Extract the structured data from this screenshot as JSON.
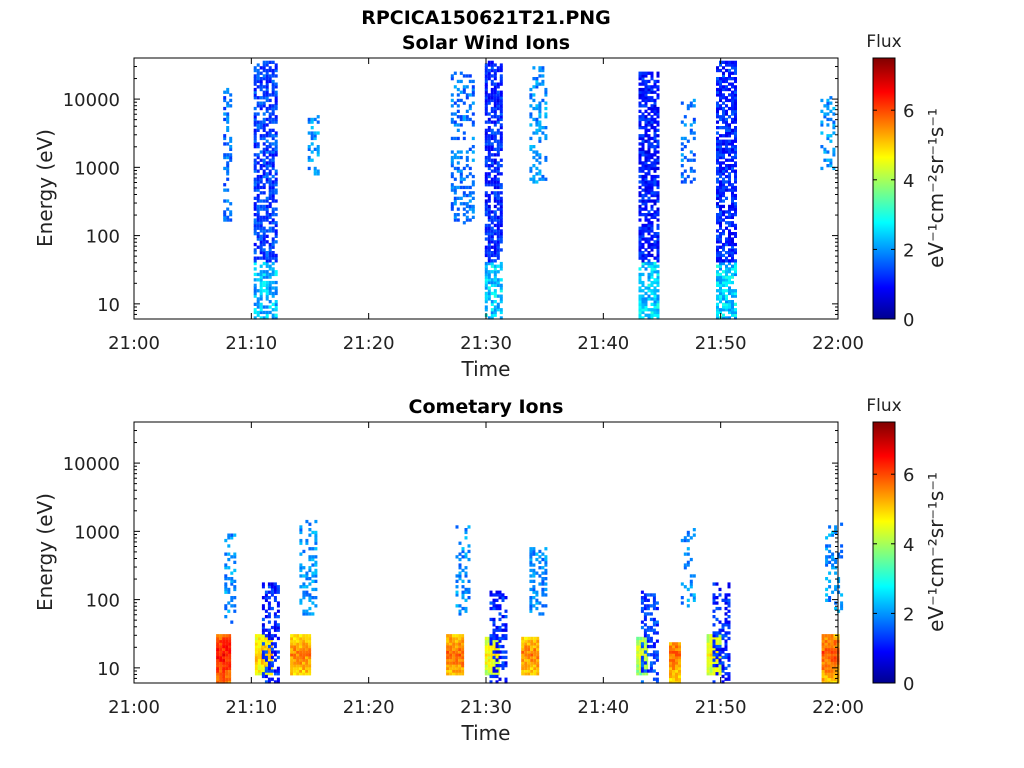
{
  "figure": {
    "file_title": "RPCICA150621T21.PNG"
  },
  "chart_data": [
    {
      "type": "heatmap",
      "title": "Solar Wind Ions",
      "xlabel": "Time",
      "ylabel": "Energy (eV)",
      "x_ticks": [
        "21:00",
        "21:10",
        "21:20",
        "21:30",
        "21:40",
        "21:50",
        "22:00"
      ],
      "xlim": [
        "21:00",
        "22:00"
      ],
      "y_ticks": [
        "10",
        "100",
        "1000",
        "10000"
      ],
      "y_tick_values": [
        10,
        100,
        1000,
        10000
      ],
      "ylim": [
        6,
        40000
      ],
      "y_scale": "log",
      "colorbar": {
        "title": "Flux",
        "label": "eV⁻¹cm⁻²sr⁻¹s⁻¹",
        "ticks": [
          "0",
          "2",
          "4",
          "6"
        ],
        "tick_values": [
          0,
          2,
          4,
          6
        ],
        "range": [
          0,
          7.5
        ],
        "colormap": "jet"
      },
      "bursts": [
        {
          "t": 7.6,
          "w": 0.6,
          "emin": 150,
          "emax": 15000,
          "v": 1.7,
          "d": 0.4
        },
        {
          "t": 10.2,
          "w": 1.8,
          "emin": 6,
          "emax": 38000,
          "v": 1.4,
          "low_v": 2.3,
          "d": 0.6
        },
        {
          "t": 14.8,
          "w": 1.0,
          "emin": 800,
          "emax": 6000,
          "v": 2.0,
          "d": 0.35
        },
        {
          "t": 27.0,
          "w": 1.8,
          "emin": 150,
          "emax": 25000,
          "v": 1.8,
          "d": 0.35
        },
        {
          "t": 29.9,
          "w": 1.4,
          "emin": 6,
          "emax": 35000,
          "v": 1.2,
          "low_v": 2.5,
          "d": 0.7
        },
        {
          "t": 33.7,
          "w": 1.3,
          "emin": 600,
          "emax": 30000,
          "v": 2.0,
          "d": 0.35
        },
        {
          "t": 43.0,
          "w": 1.6,
          "emin": 6,
          "emax": 25000,
          "v": 1.1,
          "low_v": 2.5,
          "d": 0.7
        },
        {
          "t": 46.6,
          "w": 1.2,
          "emin": 600,
          "emax": 12000,
          "v": 1.8,
          "d": 0.3
        },
        {
          "t": 49.6,
          "w": 1.6,
          "emin": 6,
          "emax": 35000,
          "v": 1.2,
          "low_v": 2.5,
          "d": 0.7
        },
        {
          "t": 58.5,
          "w": 1.2,
          "emin": 900,
          "emax": 12000,
          "v": 2.0,
          "d": 0.35
        }
      ]
    },
    {
      "type": "heatmap",
      "title": "Cometary Ions",
      "xlabel": "Time",
      "ylabel": "Energy (eV)",
      "x_ticks": [
        "21:00",
        "21:10",
        "21:20",
        "21:30",
        "21:40",
        "21:50",
        "22:00"
      ],
      "xlim": [
        "21:00",
        "22:00"
      ],
      "y_ticks": [
        "10",
        "100",
        "1000",
        "10000"
      ],
      "y_tick_values": [
        10,
        100,
        1000,
        10000
      ],
      "ylim": [
        6,
        40000
      ],
      "y_scale": "log",
      "colorbar": {
        "title": "Flux",
        "label": "eV⁻¹cm⁻²sr⁻¹s⁻¹",
        "ticks": [
          "0",
          "2",
          "4",
          "6"
        ],
        "tick_values": [
          0,
          2,
          4,
          6
        ],
        "range": [
          0,
          7.5
        ],
        "colormap": "jet"
      },
      "cores": [
        {
          "t": 7.0,
          "w": 1.2,
          "emin": 6,
          "emax": 32,
          "v": 6.5
        },
        {
          "t": 10.3,
          "w": 1.3,
          "emin": 8,
          "emax": 32,
          "v": 5.2
        },
        {
          "t": 13.3,
          "w": 1.6,
          "emin": 8,
          "emax": 32,
          "v": 5.6
        },
        {
          "t": 26.6,
          "w": 1.4,
          "emin": 8,
          "emax": 32,
          "v": 5.8
        },
        {
          "t": 29.9,
          "w": 1.2,
          "emin": 8,
          "emax": 28,
          "v": 4.8
        },
        {
          "t": 33.0,
          "w": 1.3,
          "emin": 8,
          "emax": 28,
          "v": 5.6
        },
        {
          "t": 42.8,
          "w": 0.8,
          "emin": 8,
          "emax": 28,
          "v": 4.5
        },
        {
          "t": 45.6,
          "w": 0.8,
          "emin": 6,
          "emax": 24,
          "v": 5.8
        },
        {
          "t": 48.8,
          "w": 1.1,
          "emin": 8,
          "emax": 32,
          "v": 4.8
        },
        {
          "t": 58.6,
          "w": 1.3,
          "emin": 6,
          "emax": 32,
          "v": 6.0
        }
      ],
      "bursts": [
        {
          "t": 7.7,
          "w": 1.0,
          "emin": 40,
          "emax": 900,
          "v": 2.0,
          "d": 0.35
        },
        {
          "t": 10.9,
          "w": 1.3,
          "emin": 6,
          "emax": 180,
          "v": 1.2,
          "d": 0.5
        },
        {
          "t": 14.1,
          "w": 1.3,
          "emin": 60,
          "emax": 1500,
          "v": 2.0,
          "d": 0.35
        },
        {
          "t": 27.4,
          "w": 1.2,
          "emin": 60,
          "emax": 1200,
          "v": 2.0,
          "d": 0.3
        },
        {
          "t": 30.3,
          "w": 1.3,
          "emin": 6,
          "emax": 130,
          "v": 1.2,
          "d": 0.45
        },
        {
          "t": 33.7,
          "w": 1.4,
          "emin": 60,
          "emax": 600,
          "v": 2.0,
          "d": 0.4
        },
        {
          "t": 43.2,
          "w": 1.4,
          "emin": 6,
          "emax": 130,
          "v": 1.4,
          "d": 0.4
        },
        {
          "t": 46.6,
          "w": 1.2,
          "emin": 80,
          "emax": 1100,
          "v": 2.0,
          "d": 0.3
        },
        {
          "t": 49.3,
          "w": 1.4,
          "emin": 6,
          "emax": 180,
          "v": 1.2,
          "d": 0.45
        },
        {
          "t": 58.9,
          "w": 1.3,
          "emin": 60,
          "emax": 1300,
          "v": 2.0,
          "d": 0.35
        }
      ]
    }
  ]
}
